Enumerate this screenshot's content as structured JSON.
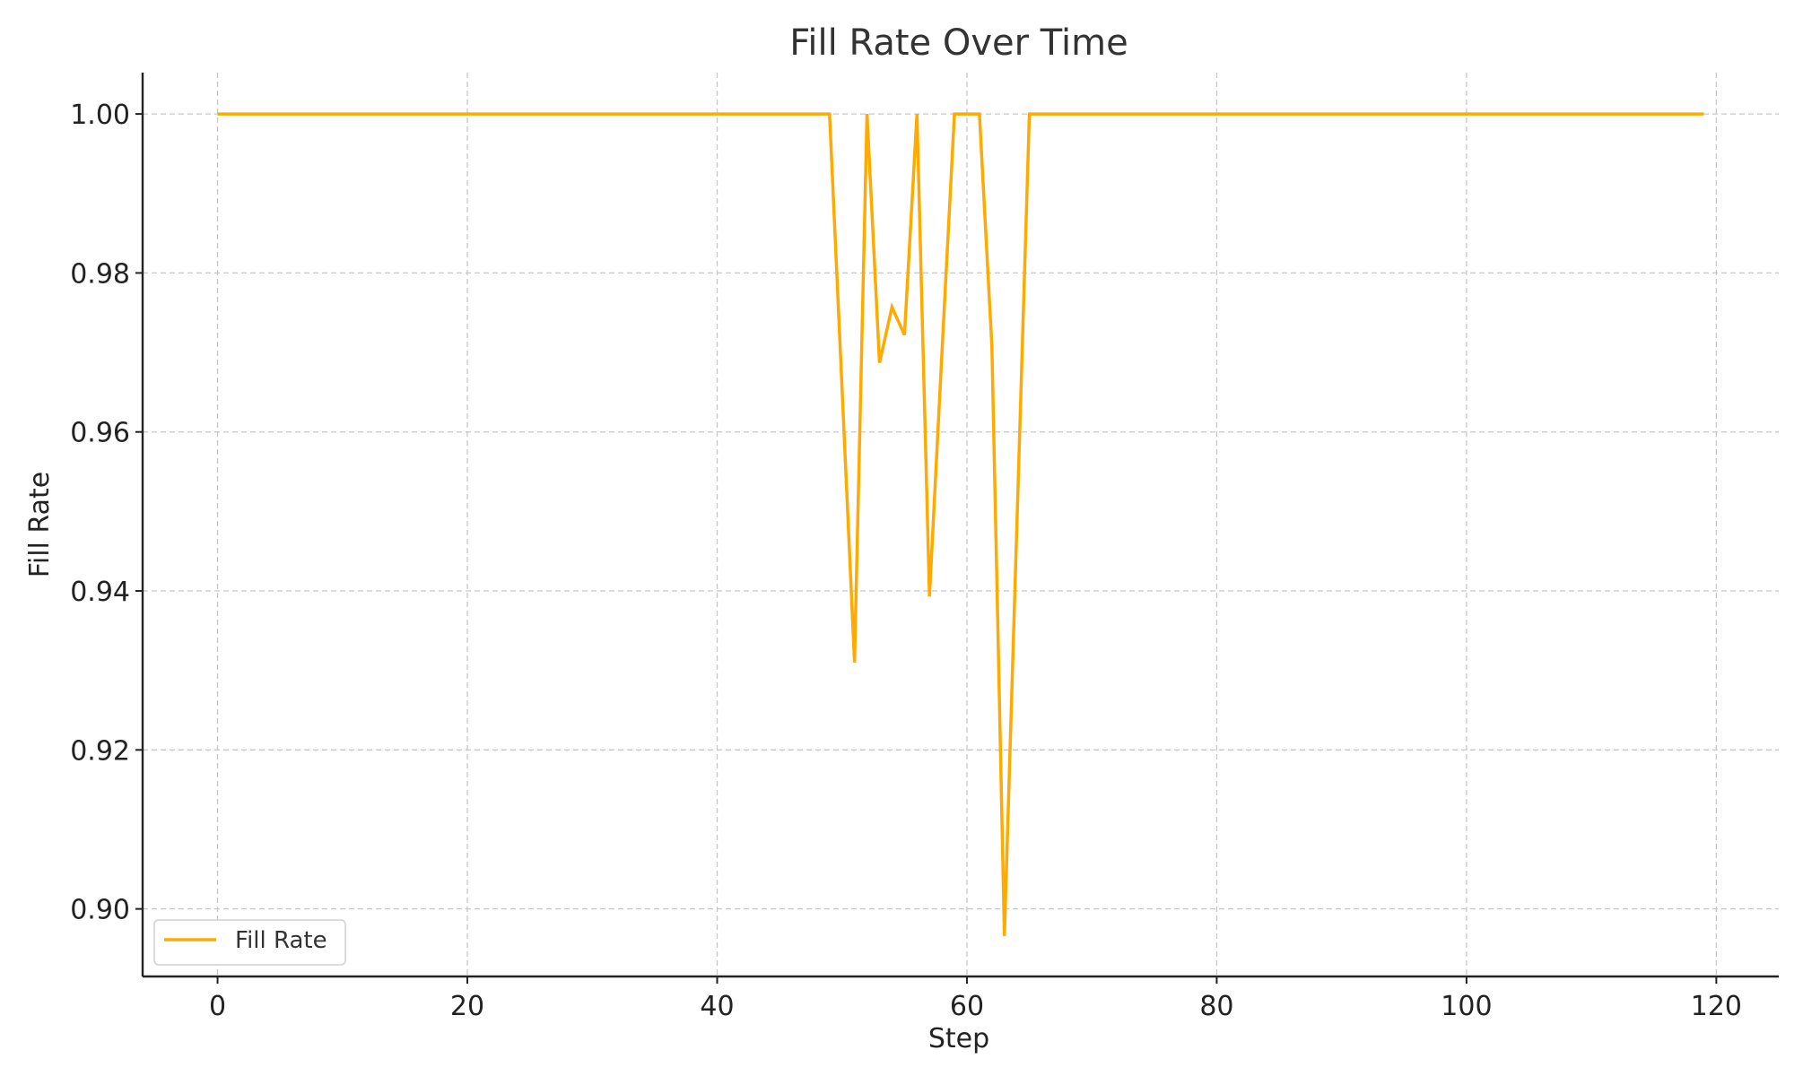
{
  "chart_data": {
    "type": "line",
    "title": "Fill Rate Over Time",
    "xlabel": "Step",
    "ylabel": "Fill Rate",
    "xlim": [
      -6,
      125
    ],
    "ylim": [
      0.8915,
      1.0052
    ],
    "x_ticks": [
      0,
      20,
      40,
      60,
      80,
      100,
      120
    ],
    "x_tick_labels": [
      "0",
      "20",
      "40",
      "60",
      "80",
      "100",
      "120"
    ],
    "y_ticks": [
      0.9,
      0.92,
      0.94,
      0.96,
      0.98,
      1.0
    ],
    "y_tick_labels": [
      "0.90",
      "0.92",
      "0.94",
      "0.96",
      "0.98",
      "1.00"
    ],
    "grid": true,
    "legend_position": "lower-left",
    "series": [
      {
        "name": "Fill Rate",
        "color": "#FFAA00",
        "points": [
          [
            0,
            1.0
          ],
          [
            49,
            1.0
          ],
          [
            51,
            0.931
          ],
          [
            52,
            1.0
          ],
          [
            53,
            0.9687
          ],
          [
            54,
            0.9757
          ],
          [
            55,
            0.9722
          ],
          [
            56,
            1.0
          ],
          [
            57,
            0.9393
          ],
          [
            58,
            0.97
          ],
          [
            59,
            1.0
          ],
          [
            61,
            1.0
          ],
          [
            62,
            0.9707
          ],
          [
            63,
            0.8966
          ],
          [
            65,
            1.0
          ],
          [
            119,
            1.0
          ]
        ]
      }
    ]
  }
}
